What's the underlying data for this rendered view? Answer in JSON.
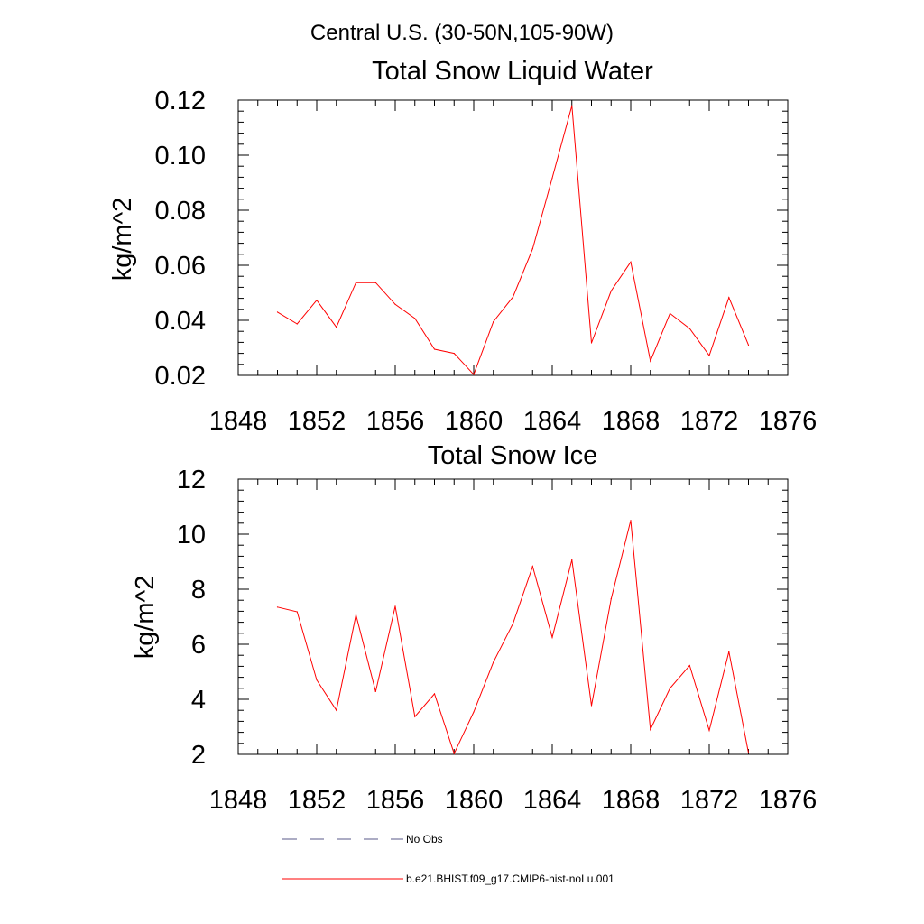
{
  "figure": {
    "main_title": "Central U.S. (30-50N,105-90W)",
    "legend": [
      {
        "label": "No Obs",
        "color": "#5a5a8a",
        "style": "dashed"
      },
      {
        "label": "b.e21.BHIST.f09_g17.CMIP6-hist-noLu.001",
        "color": "#ff0000",
        "style": "solid"
      }
    ]
  },
  "chart_data": [
    {
      "type": "line",
      "title": "Total Snow Liquid Water",
      "xlabel": "",
      "ylabel": "kg/m^2",
      "xlim": [
        1848,
        1876
      ],
      "ylim": [
        0.02,
        0.12
      ],
      "x_ticks": [
        1848,
        1852,
        1856,
        1860,
        1864,
        1868,
        1872,
        1876
      ],
      "x_tick_labels": [
        "1848",
        "1852",
        "1856",
        "1860",
        "1864",
        "1868",
        "1872",
        "1876"
      ],
      "y_ticks": [
        0.02,
        0.04,
        0.06,
        0.08,
        0.1,
        0.12
      ],
      "y_tick_labels": [
        "0.02",
        "0.04",
        "0.06",
        "0.08",
        "0.10",
        "0.12"
      ],
      "series": [
        {
          "name": "b.e21.BHIST.f09_g17.CMIP6-hist-noLu.001",
          "color": "#ff0000",
          "x": [
            1850,
            1851,
            1852,
            1853,
            1854,
            1855,
            1856,
            1857,
            1858,
            1859,
            1860,
            1861,
            1862,
            1863,
            1864,
            1865,
            1866,
            1867,
            1868,
            1869,
            1870,
            1871,
            1872,
            1873,
            1874
          ],
          "values": [
            0.043,
            0.0387,
            0.0473,
            0.0375,
            0.0537,
            0.0537,
            0.0458,
            0.0407,
            0.0295,
            0.028,
            0.0203,
            0.0395,
            0.0485,
            0.066,
            0.0917,
            0.118,
            0.0318,
            0.0507,
            0.0612,
            0.0252,
            0.0425,
            0.037,
            0.0272,
            0.0483,
            0.031
          ]
        }
      ]
    },
    {
      "type": "line",
      "title": "Total Snow Ice",
      "xlabel": "",
      "ylabel": "kg/m^2",
      "xlim": [
        1848,
        1876
      ],
      "ylim": [
        2,
        12
      ],
      "x_ticks": [
        1848,
        1852,
        1856,
        1860,
        1864,
        1868,
        1872,
        1876
      ],
      "x_tick_labels": [
        "1848",
        "1852",
        "1856",
        "1860",
        "1864",
        "1868",
        "1872",
        "1876"
      ],
      "y_ticks": [
        2,
        4,
        6,
        8,
        10,
        12
      ],
      "y_tick_labels": [
        "2",
        "4",
        "6",
        "8",
        "10",
        "12"
      ],
      "series": [
        {
          "name": "b.e21.BHIST.f09_g17.CMIP6-hist-noLu.001",
          "color": "#ff0000",
          "x": [
            1850,
            1851,
            1852,
            1853,
            1854,
            1855,
            1856,
            1857,
            1858,
            1859,
            1860,
            1861,
            1862,
            1863,
            1864,
            1865,
            1866,
            1867,
            1868,
            1869,
            1870,
            1871,
            1872,
            1873,
            1874
          ],
          "values": [
            7.35,
            7.18,
            4.7,
            3.6,
            7.07,
            4.28,
            7.38,
            3.37,
            4.2,
            2.03,
            3.54,
            5.35,
            6.75,
            8.83,
            6.25,
            9.07,
            3.77,
            7.65,
            10.5,
            2.9,
            4.4,
            5.23,
            2.87,
            5.73,
            2.05
          ]
        }
      ]
    }
  ]
}
